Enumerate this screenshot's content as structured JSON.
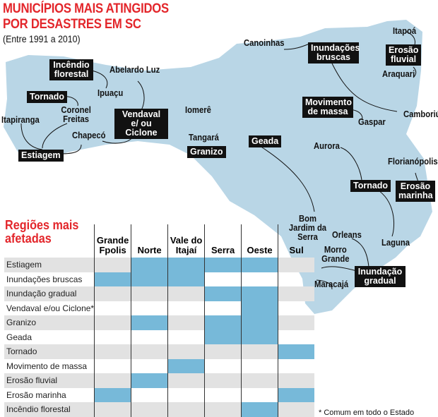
{
  "title_line1": "MUNICÍPIOS MAIS ATINGIDOS",
  "title_line2": "POR DESASTRES EM SC",
  "subtitle": "(Entre 1991 a 2010)",
  "colors": {
    "title": "#e3262b",
    "map": "#b9d6e6",
    "highlight": "#77b9d9",
    "row_shade": "#e2e2e2",
    "label_box": "#111111"
  },
  "map": {
    "places": [
      "Abelardo Luz",
      "Ipuaçu",
      "Coronel Freitas",
      "Itapiranga",
      "Chapecó",
      "Iomerê",
      "Tangará",
      "Canoinhas",
      "Itapoá",
      "Araquari",
      "Camboriú",
      "Gaspar",
      "Aurora",
      "Florianópolis",
      "Laguna",
      "Bom Jardim da Serra",
      "Orleans",
      "Morro Grande",
      "Maracajá"
    ],
    "disasters": [
      "Incêndio florestal",
      "Tornado",
      "Vendaval e/ ou Ciclone",
      "Estiagem",
      "Granizo",
      "Geada",
      "Inundações bruscas",
      "Erosão fluvial",
      "Movimento de massa",
      "Tornado",
      "Erosão marinha",
      "Inundação gradual"
    ]
  },
  "table": {
    "title_line1": "Regiões mais",
    "title_line2": "afetadas",
    "columns": [
      "Grande Fpolis",
      "Norte",
      "Vale do Itajaí",
      "Serra",
      "Oeste",
      "Sul"
    ],
    "rows": [
      {
        "label": "Estiagem",
        "cells": [
          0,
          1,
          1,
          1,
          1,
          0
        ]
      },
      {
        "label": "Inundações bruscas",
        "cells": [
          1,
          1,
          1,
          0,
          0,
          0
        ]
      },
      {
        "label": "Inundação gradual",
        "cells": [
          0,
          0,
          0,
          1,
          1,
          0
        ]
      },
      {
        "label": "Vendaval e/ou Ciclone*",
        "cells": [
          0,
          0,
          0,
          0,
          1,
          0
        ]
      },
      {
        "label": "Granizo",
        "cells": [
          0,
          1,
          0,
          1,
          1,
          0
        ]
      },
      {
        "label": "Geada",
        "cells": [
          0,
          0,
          0,
          1,
          1,
          0
        ]
      },
      {
        "label": "Tornado",
        "cells": [
          0,
          0,
          0,
          0,
          0,
          1
        ]
      },
      {
        "label": "Movimento de massa",
        "cells": [
          0,
          0,
          1,
          0,
          0,
          0
        ]
      },
      {
        "label": "Erosão fluvial",
        "cells": [
          0,
          1,
          0,
          0,
          0,
          0
        ]
      },
      {
        "label": "Erosão marinha",
        "cells": [
          1,
          0,
          0,
          0,
          0,
          1
        ]
      },
      {
        "label": "Incêndio florestal",
        "cells": [
          0,
          0,
          0,
          0,
          1,
          0
        ]
      }
    ],
    "footnote": "* Comum em todo o Estado"
  }
}
